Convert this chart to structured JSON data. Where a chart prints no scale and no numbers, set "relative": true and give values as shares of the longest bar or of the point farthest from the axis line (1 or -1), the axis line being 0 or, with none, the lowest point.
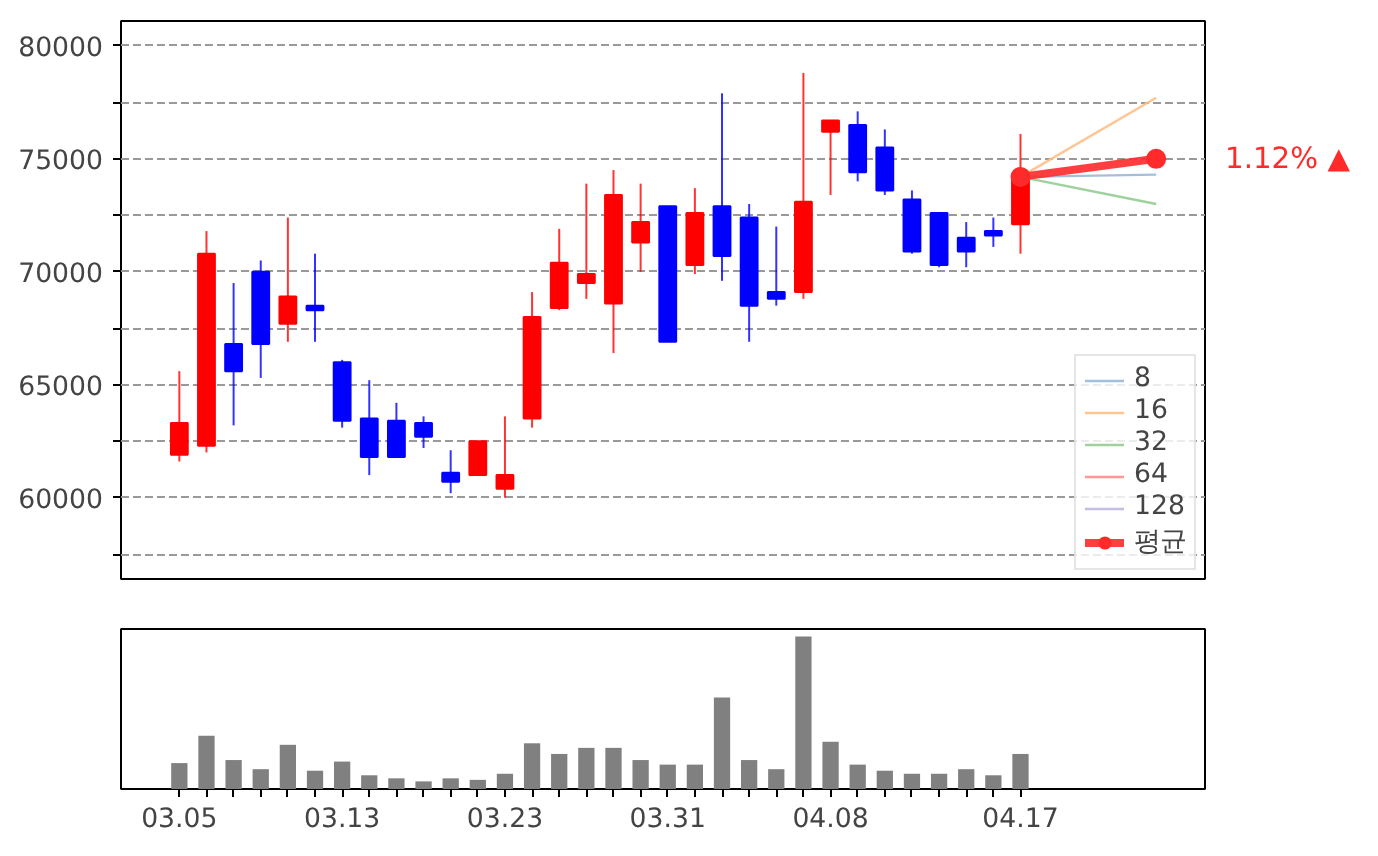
{
  "chart_data": [
    {
      "type": "candlestick",
      "categories": [
        "03.05",
        null,
        null,
        null,
        null,
        null,
        "03.13",
        null,
        null,
        null,
        null,
        null,
        "03.23",
        null,
        null,
        null,
        null,
        null,
        "03.31",
        null,
        null,
        null,
        null,
        null,
        "04.08",
        null,
        null,
        null,
        null,
        null,
        null,
        "04.17",
        null,
        null,
        null,
        null,
        null
      ],
      "ohlc": [
        [
          61900,
          65600,
          61600,
          63300
        ],
        [
          62300,
          71800,
          62000,
          70800
        ],
        [
          66800,
          69500,
          63200,
          65600
        ],
        [
          70000,
          70500,
          65300,
          66800
        ],
        [
          67700,
          72400,
          66900,
          68900
        ],
        [
          68500,
          70800,
          66900,
          68300
        ],
        [
          66000,
          66100,
          63100,
          63400
        ],
        [
          63500,
          65200,
          61000,
          61800
        ],
        [
          63400,
          64200,
          61800,
          61800
        ],
        [
          63300,
          63600,
          62200,
          62700
        ],
        [
          61100,
          62100,
          60200,
          60700
        ],
        [
          61000,
          62500,
          61000,
          62500
        ],
        [
          60400,
          63600,
          60000,
          61000
        ],
        [
          63500,
          69100,
          63100,
          68000
        ],
        [
          68400,
          71900,
          68300,
          70400
        ],
        [
          69500,
          73900,
          68800,
          69900
        ],
        [
          68600,
          74500,
          66400,
          73400
        ],
        [
          71300,
          73900,
          70000,
          72200
        ],
        [
          72900,
          72900,
          66900,
          66900
        ],
        [
          70300,
          73700,
          69900,
          72600
        ],
        [
          72900,
          77900,
          69600,
          70700
        ],
        [
          72400,
          73000,
          66900,
          68500
        ],
        [
          69100,
          72000,
          68500,
          68800
        ],
        [
          69100,
          78800,
          68800,
          73100
        ],
        [
          76200,
          76700,
          73400,
          76700
        ],
        [
          76500,
          77100,
          74000,
          74400
        ],
        [
          75500,
          76300,
          73400,
          73600
        ],
        [
          73200,
          73600,
          70800,
          70900
        ],
        [
          72600,
          72600,
          70200,
          70300
        ],
        [
          71500,
          72200,
          70200,
          70900
        ],
        [
          71800,
          72400,
          71100,
          71600
        ],
        [
          72100,
          76100,
          70800,
          74200
        ],
        null,
        null,
        null,
        null,
        null
      ],
      "colors": [
        "#ff0000",
        "#ff0000",
        "#0000ff",
        "#0000ff",
        "#ff0000",
        "#0000ff",
        "#0000ff",
        "#0000ff",
        "#0000ff",
        "#0000ff",
        "#0000ff",
        "#ff0000",
        "#ff0000",
        "#ff0000",
        "#ff0000",
        "#ff0000",
        "#ff0000",
        "#ff0000",
        "#0000ff",
        "#ff0000",
        "#0000ff",
        "#0000ff",
        "#0000ff",
        "#ff0000",
        "#ff0000",
        "#0000ff",
        "#0000ff",
        "#0000ff",
        "#0000ff",
        "#0000ff",
        "#0000ff",
        "#ff0000",
        null,
        null,
        null,
        null,
        null
      ],
      "series": [
        {
          "name": "8",
          "type": "line",
          "color": "#9ab8d8",
          "values": [
            null,
            null,
            null,
            null,
            null,
            null,
            null,
            null,
            null,
            null,
            null,
            null,
            null,
            null,
            null,
            null,
            null,
            null,
            null,
            null,
            null,
            null,
            null,
            null,
            null,
            null,
            null,
            null,
            null,
            null,
            null,
            74200,
            null,
            null,
            null,
            null,
            74300
          ]
        },
        {
          "name": "16",
          "type": "line",
          "color": "#ffbf86",
          "values": [
            null,
            null,
            null,
            null,
            null,
            null,
            null,
            null,
            null,
            null,
            null,
            null,
            null,
            null,
            null,
            null,
            null,
            null,
            null,
            null,
            null,
            null,
            null,
            null,
            null,
            null,
            null,
            null,
            null,
            null,
            null,
            74200,
            null,
            null,
            null,
            null,
            77700
          ]
        },
        {
          "name": "32",
          "type": "line",
          "color": "#94cc94",
          "values": [
            null,
            null,
            null,
            null,
            null,
            null,
            null,
            null,
            null,
            null,
            null,
            null,
            null,
            null,
            null,
            null,
            null,
            null,
            null,
            null,
            null,
            null,
            null,
            null,
            null,
            null,
            null,
            null,
            null,
            null,
            null,
            74200,
            null,
            null,
            null,
            null,
            73000
          ]
        },
        {
          "name": "64",
          "type": "line",
          "color": "#ff8c8c",
          "values": [
            null,
            null,
            null,
            null,
            null,
            null,
            null,
            null,
            null,
            null,
            null,
            null,
            null,
            null,
            null,
            null,
            null,
            null,
            null,
            null,
            null,
            null,
            null,
            null,
            null,
            null,
            null,
            null,
            null,
            null,
            null,
            null,
            null,
            null,
            null,
            null,
            null
          ]
        },
        {
          "name": "128",
          "type": "line",
          "color": "#bcb6dc",
          "values": [
            null,
            null,
            null,
            null,
            null,
            null,
            null,
            null,
            null,
            null,
            null,
            null,
            null,
            null,
            null,
            null,
            null,
            null,
            null,
            null,
            null,
            null,
            null,
            null,
            null,
            null,
            null,
            null,
            null,
            null,
            null,
            null,
            null,
            null,
            null,
            null,
            null
          ]
        },
        {
          "name": "평균",
          "type": "line",
          "marker": "circle",
          "color": "#ff2a2a",
          "values": [
            null,
            null,
            null,
            null,
            null,
            null,
            null,
            null,
            null,
            null,
            null,
            null,
            null,
            null,
            null,
            null,
            null,
            null,
            null,
            null,
            null,
            null,
            null,
            null,
            null,
            null,
            null,
            null,
            null,
            null,
            null,
            74200,
            null,
            null,
            null,
            null,
            75000
          ]
        }
      ],
      "ylim": [
        56400,
        81100
      ],
      "yticks": [
        {
          "value": 57500,
          "label": null
        },
        60000,
        {
          "value": 62500,
          "label": null
        },
        65000,
        {
          "value": 67500,
          "label": null
        },
        70000,
        {
          "value": 72500,
          "label": null
        },
        75000,
        {
          "value": 77500,
          "label": null
        },
        80000
      ],
      "grid": "y",
      "legend": "bottom right",
      "tick_labels": "y",
      "annotations": [
        "1.12% ▲"
      ]
    },
    {
      "type": "bar",
      "relative": true,
      "tick_labels": "x",
      "color": "#808080",
      "categories": [
        "03.05",
        null,
        null,
        null,
        null,
        null,
        "03.13",
        null,
        null,
        null,
        null,
        null,
        "03.23",
        null,
        null,
        null,
        null,
        null,
        "03.31",
        null,
        null,
        null,
        null,
        null,
        "04.08",
        null,
        null,
        null,
        null,
        null,
        null,
        "04.17",
        null,
        null,
        null,
        null,
        null
      ],
      "values": [
        0.17,
        0.35,
        0.19,
        0.13,
        0.29,
        0.12,
        0.18,
        0.09,
        0.07,
        0.05,
        0.07,
        0.06,
        0.1,
        0.3,
        0.23,
        0.27,
        0.27,
        0.19,
        0.16,
        0.16,
        0.6,
        0.19,
        0.13,
        1,
        0.31,
        0.16,
        0.12,
        0.1,
        0.1,
        0.13,
        0.09,
        0.23,
        null,
        null,
        null,
        null,
        null
      ]
    }
  ]
}
